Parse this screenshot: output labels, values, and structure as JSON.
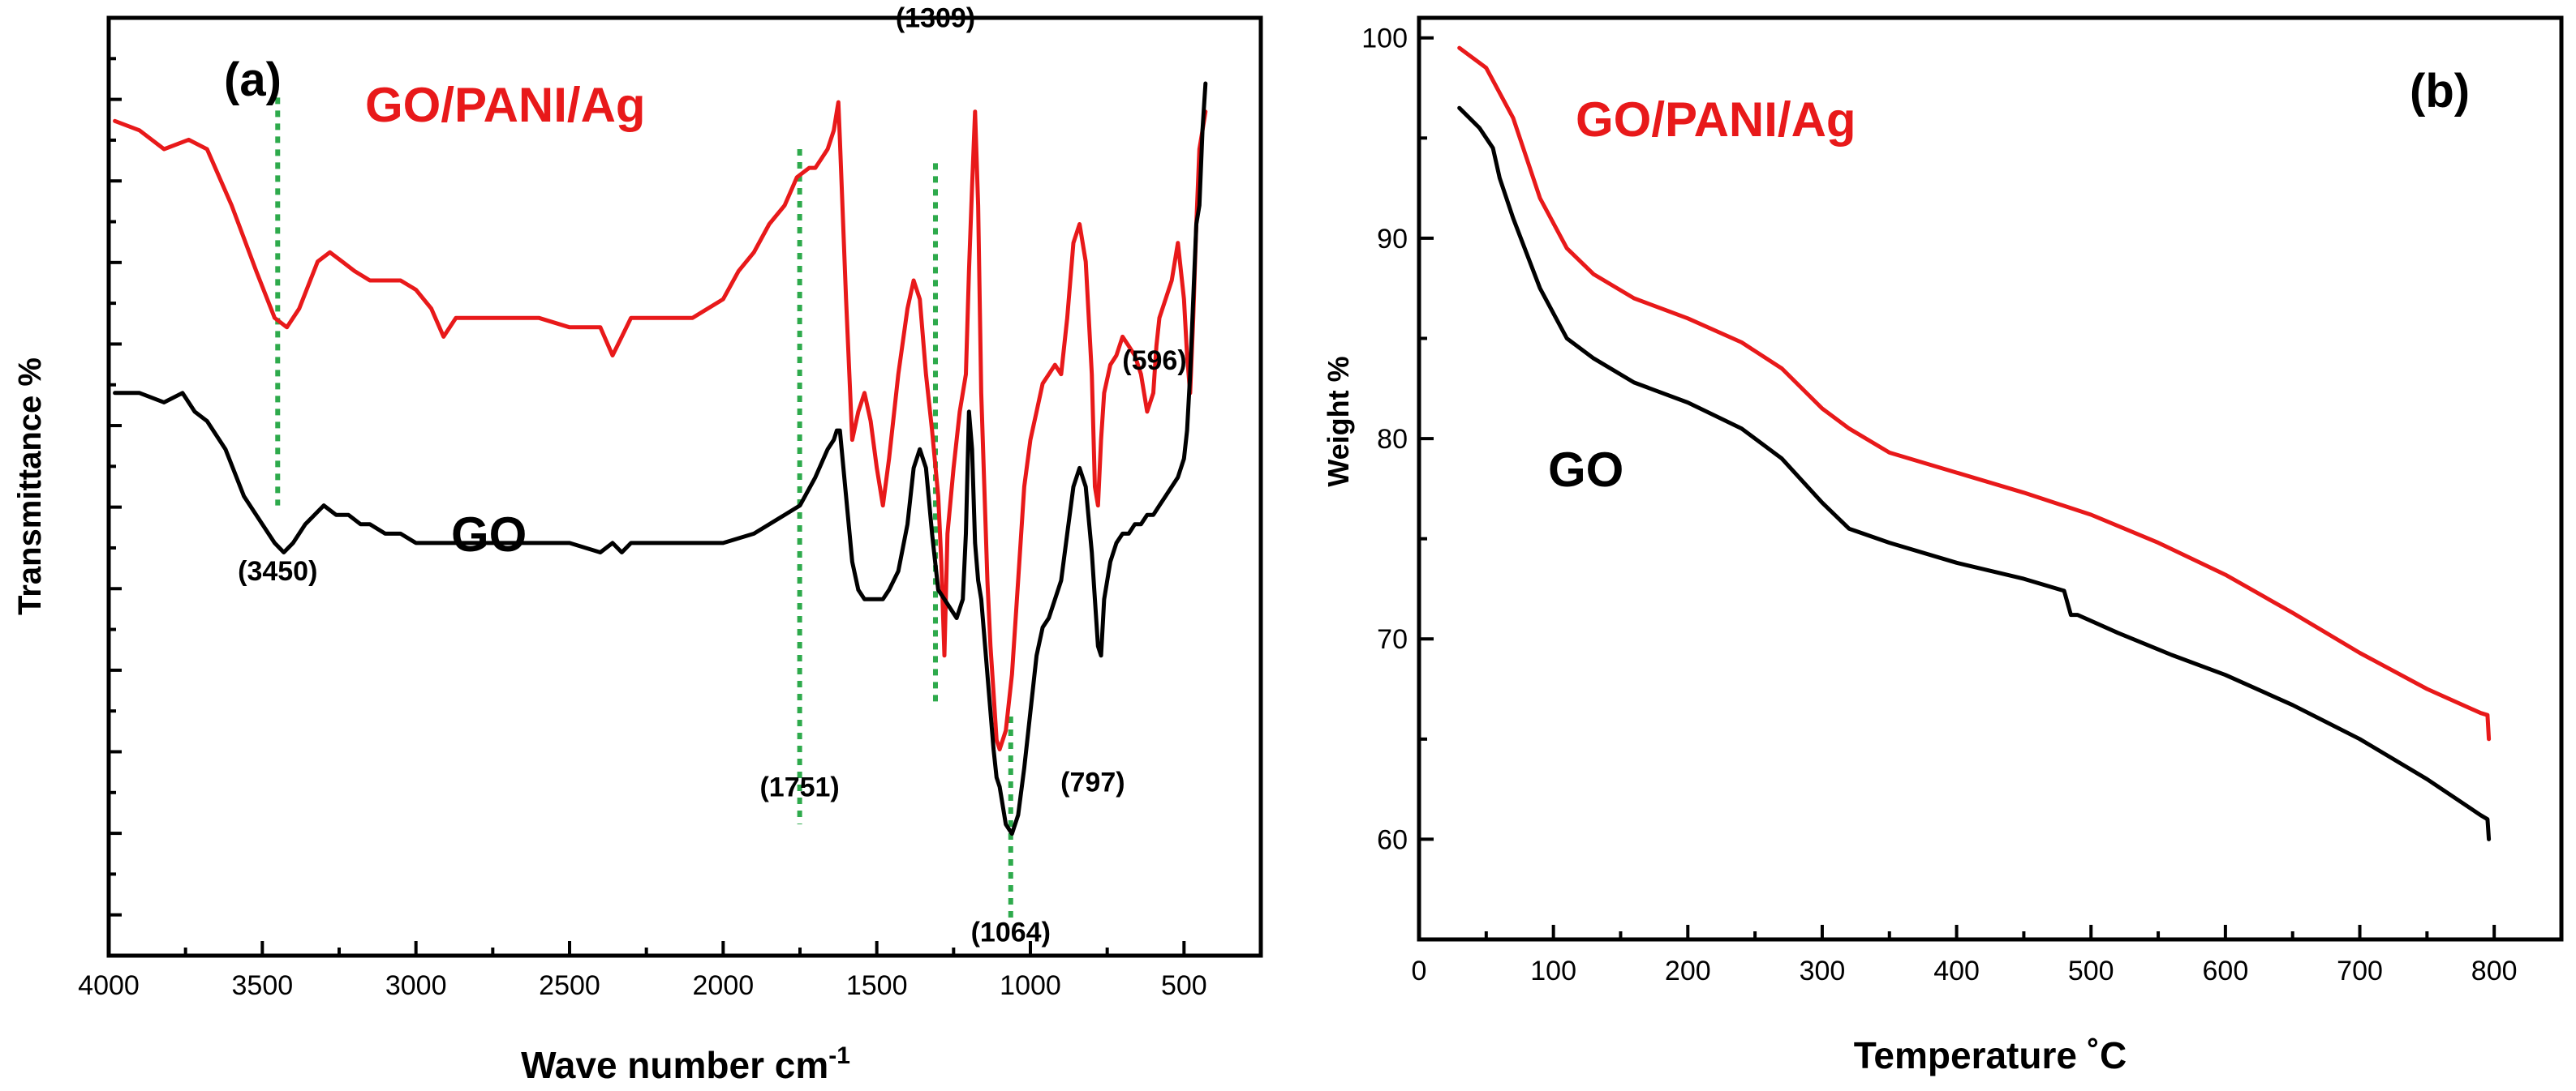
{
  "chart_data": [
    {
      "panel_label": "(a)",
      "type": "line",
      "xlabel": "Wave number cm",
      "xlabel_sup": "-1",
      "ylabel": "Transmittance %",
      "xlim": [
        4000,
        250
      ],
      "x_ticks": [
        4000,
        3500,
        3000,
        2500,
        2000,
        1500,
        1000,
        500
      ],
      "ylim": [
        0,
        100
      ],
      "colors": {
        "GO/PANI/Ag": "#e8191a",
        "GO": "#000000",
        "marker": "#2eaa4c"
      },
      "series": [
        {
          "name": "GO/PANI/Ag",
          "x": [
            3980,
            3900,
            3820,
            3740,
            3680,
            3600,
            3520,
            3460,
            3420,
            3380,
            3320,
            3280,
            3240,
            3200,
            3150,
            3100,
            3050,
            3000,
            2950,
            2910,
            2870,
            2800,
            2700,
            2600,
            2500,
            2400,
            2360,
            2330,
            2300,
            2200,
            2100,
            2000,
            1950,
            1900,
            1850,
            1800,
            1760,
            1720,
            1700,
            1680,
            1660,
            1640,
            1630,
            1625,
            1620,
            1600,
            1580,
            1560,
            1540,
            1520,
            1500,
            1480,
            1460,
            1430,
            1400,
            1380,
            1360,
            1340,
            1320,
            1300,
            1290,
            1280,
            1270,
            1250,
            1230,
            1210,
            1200,
            1190,
            1180,
            1170,
            1160,
            1150,
            1140,
            1130,
            1120,
            1110,
            1100,
            1080,
            1060,
            1040,
            1020,
            1000,
            980,
            960,
            940,
            920,
            900,
            880,
            860,
            840,
            820,
            800,
            790,
            780,
            770,
            760,
            740,
            720,
            700,
            680,
            660,
            640,
            620,
            600,
            590,
            580,
            560,
            540,
            520,
            500,
            490,
            480,
            470,
            460,
            450,
            440,
            430
          ],
          "y": [
            89,
            88,
            86,
            87,
            86,
            80,
            73,
            68,
            67,
            69,
            74,
            75,
            74,
            73,
            72,
            72,
            72,
            71,
            69,
            66,
            68,
            68,
            68,
            68,
            67,
            67,
            64,
            66,
            68,
            68,
            68,
            70,
            73,
            75,
            78,
            80,
            83,
            84,
            84,
            85,
            86,
            88,
            90,
            91,
            87,
            70,
            55,
            58,
            60,
            57,
            52,
            48,
            53,
            62,
            69,
            72,
            70,
            62,
            56,
            49,
            42,
            32,
            45,
            52,
            58,
            62,
            73,
            82,
            90,
            80,
            60,
            50,
            40,
            33,
            28,
            23,
            22,
            24,
            30,
            40,
            50,
            55,
            58,
            61,
            62,
            63,
            62,
            68,
            76,
            78,
            74,
            62,
            50,
            48,
            55,
            60,
            63,
            64,
            66,
            65,
            64,
            62,
            58,
            60,
            65,
            68,
            70,
            72,
            76,
            70,
            64,
            60,
            68,
            78,
            86,
            88,
            90
          ]
        },
        {
          "name": "GO",
          "x": [
            3980,
            3900,
            3820,
            3760,
            3720,
            3680,
            3620,
            3560,
            3500,
            3460,
            3430,
            3400,
            3360,
            3300,
            3260,
            3220,
            3180,
            3150,
            3100,
            3050,
            3000,
            2950,
            2900,
            2800,
            2700,
            2600,
            2500,
            2400,
            2360,
            2330,
            2300,
            2200,
            2100,
            2000,
            1900,
            1800,
            1750,
            1700,
            1660,
            1640,
            1630,
            1620,
            1600,
            1580,
            1560,
            1540,
            1520,
            1500,
            1480,
            1460,
            1430,
            1400,
            1380,
            1360,
            1340,
            1320,
            1300,
            1280,
            1260,
            1240,
            1220,
            1210,
            1200,
            1190,
            1180,
            1170,
            1160,
            1150,
            1140,
            1130,
            1120,
            1110,
            1100,
            1090,
            1080,
            1060,
            1040,
            1020,
            1000,
            980,
            960,
            940,
            920,
            900,
            880,
            860,
            840,
            820,
            800,
            790,
            780,
            770,
            760,
            740,
            720,
            700,
            680,
            660,
            640,
            620,
            600,
            580,
            560,
            540,
            520,
            500,
            490,
            480,
            470,
            460,
            450,
            440,
            430
          ],
          "y": [
            60,
            60,
            59,
            60,
            58,
            57,
            54,
            49,
            46,
            44,
            43,
            44,
            46,
            48,
            47,
            47,
            46,
            46,
            45,
            45,
            44,
            44,
            44,
            44,
            44,
            44,
            44,
            43,
            44,
            43,
            44,
            44,
            44,
            44,
            45,
            47,
            48,
            51,
            54,
            55,
            56,
            56,
            49,
            42,
            39,
            38,
            38,
            38,
            38,
            39,
            41,
            46,
            52,
            54,
            52,
            45,
            39,
            38,
            37,
            36,
            38,
            45,
            58,
            54,
            44,
            40,
            38,
            34,
            30,
            26,
            22,
            19,
            18,
            16,
            14,
            13,
            15,
            20,
            26,
            32,
            35,
            36,
            38,
            40,
            45,
            50,
            52,
            50,
            43,
            38,
            33,
            32,
            38,
            42,
            44,
            45,
            45,
            46,
            46,
            47,
            47,
            48,
            49,
            50,
            51,
            53,
            56,
            62,
            70,
            78,
            80,
            88,
            93
          ]
        }
      ],
      "series_labels": [
        "GO/PANI/Ag",
        "GO"
      ],
      "peak_annotations": [
        {
          "label": "(3450)",
          "wavenumber": 3450
        },
        {
          "label": "(1751)",
          "wavenumber": 1751
        },
        {
          "label": "(1309)",
          "wavenumber": 1309
        },
        {
          "label": "(1064)",
          "wavenumber": 1064
        },
        {
          "label": "(797)",
          "wavenumber": 797
        },
        {
          "label": "(596)",
          "wavenumber": 596
        }
      ]
    },
    {
      "panel_label": "(b)",
      "type": "line",
      "xlabel": "Temperature ˚C",
      "ylabel": "Weight %",
      "xlim": [
        0,
        850
      ],
      "ylim": [
        55,
        101
      ],
      "x_ticks": [
        0,
        100,
        200,
        300,
        400,
        500,
        600,
        700,
        800
      ],
      "y_ticks": [
        60,
        70,
        80,
        90,
        100
      ],
      "colors": {
        "GO/PANI/Ag": "#e8191a",
        "GO": "#000000"
      },
      "series": [
        {
          "name": "GO/PANI/Ag",
          "x": [
            30,
            50,
            70,
            90,
            110,
            130,
            160,
            200,
            240,
            270,
            300,
            320,
            350,
            400,
            450,
            500,
            550,
            600,
            650,
            700,
            750,
            790,
            795,
            796
          ],
          "y": [
            99.5,
            98.5,
            96,
            92,
            89.5,
            88.2,
            87,
            86,
            84.8,
            83.5,
            81.5,
            80.5,
            79.3,
            78.3,
            77.3,
            76.2,
            74.8,
            73.2,
            71.3,
            69.3,
            67.5,
            66.3,
            66.2,
            65
          ]
        },
        {
          "name": "GO",
          "x": [
            30,
            45,
            55,
            60,
            70,
            90,
            110,
            130,
            160,
            200,
            240,
            270,
            300,
            320,
            350,
            400,
            450,
            480,
            485,
            490,
            520,
            560,
            600,
            650,
            700,
            750,
            790,
            795,
            796
          ],
          "y": [
            96.5,
            95.5,
            94.5,
            93,
            91,
            87.5,
            85,
            84,
            82.8,
            81.8,
            80.5,
            79,
            76.8,
            75.5,
            74.8,
            73.8,
            73,
            72.4,
            71.2,
            71.2,
            70.3,
            69.2,
            68.2,
            66.7,
            65,
            63,
            61.2,
            61,
            60
          ]
        }
      ],
      "series_labels": [
        "GO/PANI/Ag",
        "GO"
      ]
    }
  ]
}
